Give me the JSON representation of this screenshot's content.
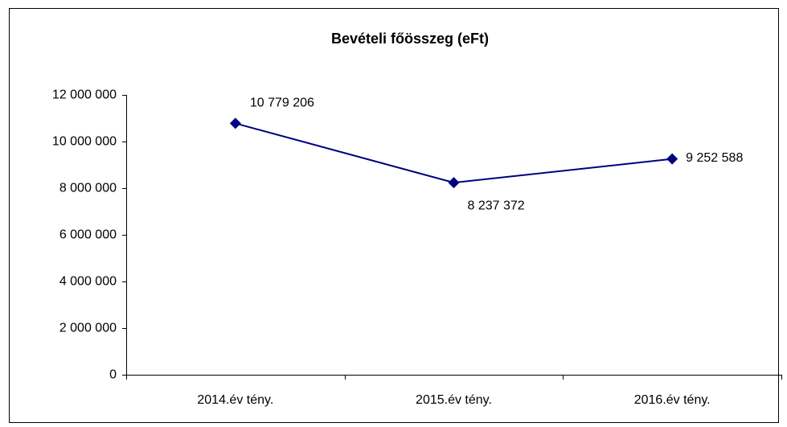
{
  "chart_data": {
    "type": "line",
    "title": "Bevételi főösszeg (eFt)",
    "categories": [
      "2014.év tény.",
      "2015.év tény.",
      "2016.év tény."
    ],
    "series": [
      {
        "name": "Bevételi főösszeg",
        "color": "#000080",
        "values": [
          10779206,
          8237372,
          9252588
        ],
        "value_labels": [
          "10 779 206",
          "8 237 372",
          "9 252 588"
        ]
      }
    ],
    "ylim": [
      0,
      12000000
    ],
    "yticks": [
      0,
      {
        "value": 2000000,
        "label": "2 000 000"
      },
      {
        "value": 4000000,
        "label": "4 000 000"
      },
      {
        "value": 6000000,
        "label": "6 000 000"
      },
      {
        "value": 8000000,
        "label": "8 000 000"
      },
      {
        "value": 10000000,
        "label": "10 000 000"
      },
      {
        "value": 12000000,
        "label": "12 000 000"
      }
    ],
    "grid": false
  }
}
